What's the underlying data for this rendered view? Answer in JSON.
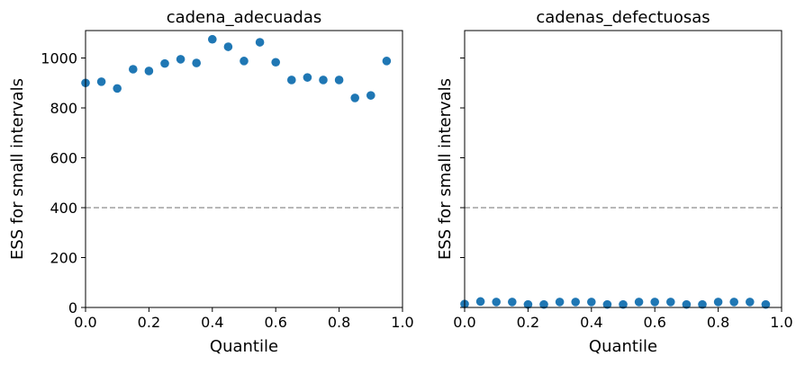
{
  "chart_data": [
    {
      "type": "scatter",
      "title": "cadena_adecuadas",
      "xlabel": "Quantile",
      "ylabel": "ESS for small intervals",
      "xlim": [
        0,
        1
      ],
      "ylim": [
        0,
        1110
      ],
      "xticks": [
        "0.0",
        "0.2",
        "0.4",
        "0.6",
        "0.8",
        "1.0"
      ],
      "yticks": [
        "0",
        "200",
        "400",
        "600",
        "800",
        "1000"
      ],
      "show_ytick_labels": true,
      "reference_line": 400,
      "marker_color": "#1f77b4",
      "x": [
        0.0,
        0.05,
        0.1,
        0.15,
        0.2,
        0.25,
        0.3,
        0.35,
        0.4,
        0.45,
        0.5,
        0.55,
        0.6,
        0.65,
        0.7,
        0.75,
        0.8,
        0.85,
        0.9,
        0.95
      ],
      "y": [
        900,
        905,
        878,
        955,
        948,
        978,
        995,
        980,
        1075,
        1045,
        988,
        1063,
        983,
        912,
        922,
        912,
        912,
        840,
        850,
        988
      ]
    },
    {
      "type": "scatter",
      "title": "cadenas_defectuosas",
      "xlabel": "Quantile",
      "ylabel": "ESS for small intervals",
      "xlim": [
        0,
        1
      ],
      "ylim": [
        0,
        1110
      ],
      "xticks": [
        "0.0",
        "0.2",
        "0.4",
        "0.6",
        "0.8",
        "1.0"
      ],
      "yticks": [
        "0",
        "200",
        "400",
        "600",
        "800",
        "1000"
      ],
      "show_ytick_labels": false,
      "reference_line": 400,
      "marker_color": "#1f77b4",
      "x": [
        0.0,
        0.05,
        0.1,
        0.15,
        0.2,
        0.25,
        0.3,
        0.35,
        0.4,
        0.45,
        0.5,
        0.55,
        0.6,
        0.65,
        0.7,
        0.75,
        0.8,
        0.85,
        0.9,
        0.95
      ],
      "y": [
        14,
        24,
        22,
        22,
        12,
        12,
        22,
        22,
        22,
        12,
        12,
        22,
        22,
        22,
        12,
        12,
        22,
        22,
        22,
        12
      ]
    }
  ]
}
